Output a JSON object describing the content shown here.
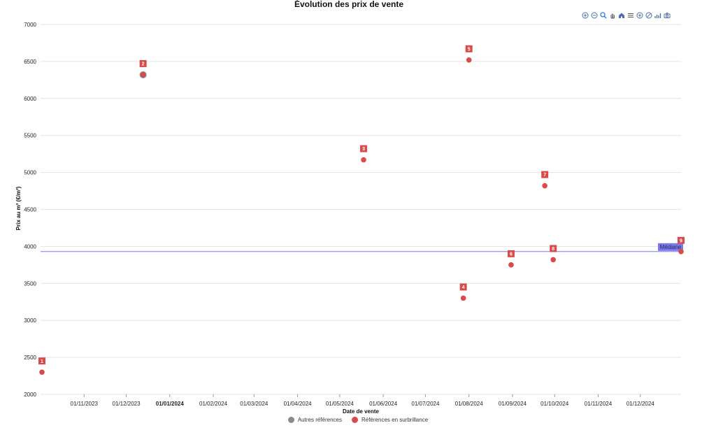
{
  "chart_data": {
    "type": "scatter",
    "title": "Évolution des prix de vente",
    "xlabel": "Date de vente",
    "ylabel": "Prix au m² (€/m²)",
    "ylim": [
      2000,
      7000
    ],
    "yticks": [
      "7000",
      "6500",
      "6000",
      "5500",
      "5000",
      "4500",
      "4000",
      "3500",
      "3000",
      "2500",
      "2000"
    ],
    "xlim": [
      "2023-10-01",
      "2024-12-30"
    ],
    "xticks": [
      {
        "date": "2023-11-01",
        "label": "01/11/2023"
      },
      {
        "date": "2023-12-01",
        "label": "01/12/2023"
      },
      {
        "date": "2024-01-01",
        "label": "01/01/2024",
        "bold": true
      },
      {
        "date": "2024-02-01",
        "label": "01/02/2024"
      },
      {
        "date": "2024-03-01",
        "label": "01/03/2024"
      },
      {
        "date": "2024-04-01",
        "label": "01/04/2024"
      },
      {
        "date": "2024-05-01",
        "label": "01/05/2024"
      },
      {
        "date": "2024-06-01",
        "label": "01/06/2024"
      },
      {
        "date": "2024-07-01",
        "label": "01/07/2024"
      },
      {
        "date": "2024-08-01",
        "label": "01/08/2024"
      },
      {
        "date": "2024-09-01",
        "label": "01/09/2024"
      },
      {
        "date": "2024-10-01",
        "label": "01/10/2024"
      },
      {
        "date": "2024-11-01",
        "label": "01/11/2024"
      },
      {
        "date": "2024-12-01",
        "label": "01/12/2024"
      }
    ],
    "grid": true,
    "legend_position": "bottom-center",
    "series": [
      {
        "name": "Autres références",
        "color": "#8a8a8a",
        "points": [
          {
            "x": "2023-12-13",
            "y": 6320
          }
        ]
      },
      {
        "name": "Références en surbrillance",
        "color": "#d94b4b",
        "points": [
          {
            "label": "1",
            "x": "2023-10-02",
            "y": 2300
          },
          {
            "label": "2",
            "x": "2023-12-13",
            "y": 6320
          },
          {
            "label": "3",
            "x": "2024-05-18",
            "y": 5170
          },
          {
            "label": "4",
            "x": "2024-07-28",
            "y": 3300
          },
          {
            "label": "5",
            "x": "2024-08-01",
            "y": 6520
          },
          {
            "label": "6",
            "x": "2024-08-31",
            "y": 3750
          },
          {
            "label": "7",
            "x": "2024-09-24",
            "y": 4820
          },
          {
            "label": "8",
            "x": "2024-09-30",
            "y": 3820
          },
          {
            "label": "9",
            "x": "2024-12-30",
            "y": 3930
          }
        ]
      }
    ],
    "median": {
      "label": "Médiane",
      "value": 3930,
      "color": "#7b78e8"
    }
  },
  "toolbar": {
    "icons": [
      "zoom-in-icon",
      "zoom-out-icon",
      "zoom-select-icon",
      "pan-icon",
      "home-icon",
      "menu-icon",
      "zoom-in-alt-icon",
      "reset-icon",
      "chart-type-icon",
      "camera-icon"
    ]
  }
}
